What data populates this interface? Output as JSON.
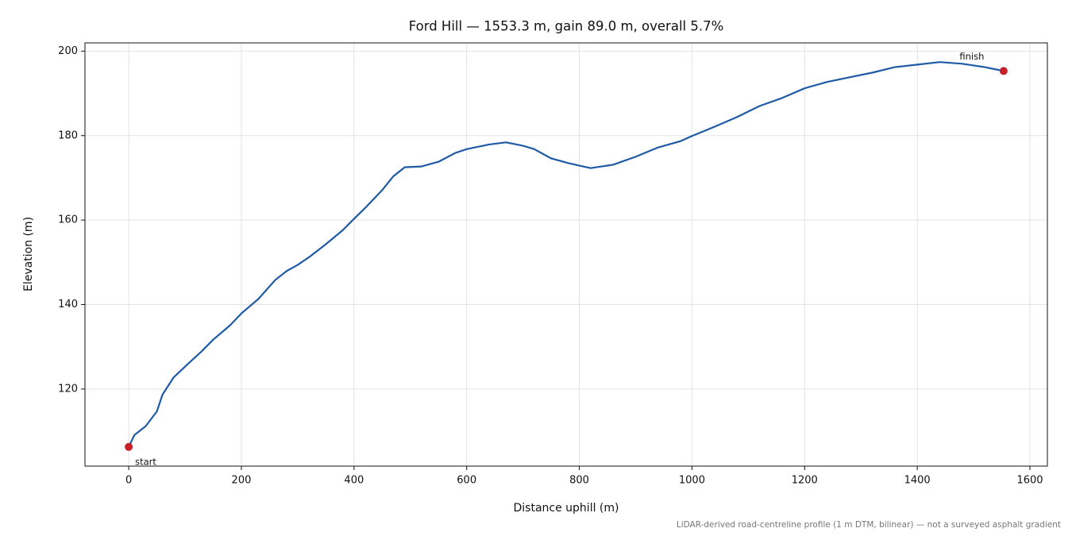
{
  "chart_data": {
    "type": "line",
    "title": "Ford Hill — 1553.3 m, gain 89.0 m, overall 5.7%",
    "xlabel": "Distance uphill (m)",
    "ylabel": "Elevation (m)",
    "footnote": "LiDAR-derived road-centreline profile (1 m DTM, bilinear) — not a surveyed asphalt gradient",
    "x": [
      0,
      10,
      30,
      50,
      60,
      80,
      100,
      130,
      150,
      180,
      200,
      230,
      260,
      280,
      300,
      320,
      350,
      380,
      400,
      420,
      450,
      470,
      490,
      520,
      550,
      580,
      600,
      640,
      670,
      700,
      720,
      750,
      780,
      800,
      820,
      840,
      860,
      900,
      940,
      980,
      1000,
      1040,
      1080,
      1120,
      1160,
      1200,
      1240,
      1280,
      1320,
      1360,
      1400,
      1440,
      1480,
      1520,
      1553.3
    ],
    "series": [
      {
        "color": "#1f5aa6",
        "values": [
          106.3,
          109.1,
          111.2,
          114.7,
          118.7,
          122.8,
          125.3,
          129.0,
          131.7,
          135.1,
          137.9,
          141.3,
          145.8,
          147.9,
          149.4,
          151.2,
          154.3,
          157.6,
          160.3,
          162.9,
          167.1,
          170.4,
          172.5,
          172.7,
          173.8,
          175.9,
          176.8,
          177.9,
          178.4,
          177.6,
          176.8,
          174.6,
          173.5,
          172.9,
          172.3,
          172.7,
          173.1,
          175.0,
          177.2,
          178.7,
          179.9,
          182.1,
          184.4,
          187.0,
          188.9,
          191.2,
          192.7,
          193.8,
          194.9,
          196.2,
          196.8,
          197.4,
          197.0,
          196.2,
          195.3
        ]
      }
    ],
    "points": {
      "color": "#c8202b",
      "labels": [
        "start",
        "finish"
      ],
      "x": [
        0,
        1553.3
      ],
      "values": [
        106.3,
        195.3
      ]
    },
    "xlim": [
      -77.7,
      1631
    ],
    "ylim": [
      101.75,
      201.95
    ],
    "xticks": [
      0,
      200,
      400,
      600,
      800,
      1000,
      1200,
      1400,
      1600
    ],
    "yticks": [
      120,
      140,
      160,
      180,
      200
    ],
    "grid": true
  }
}
